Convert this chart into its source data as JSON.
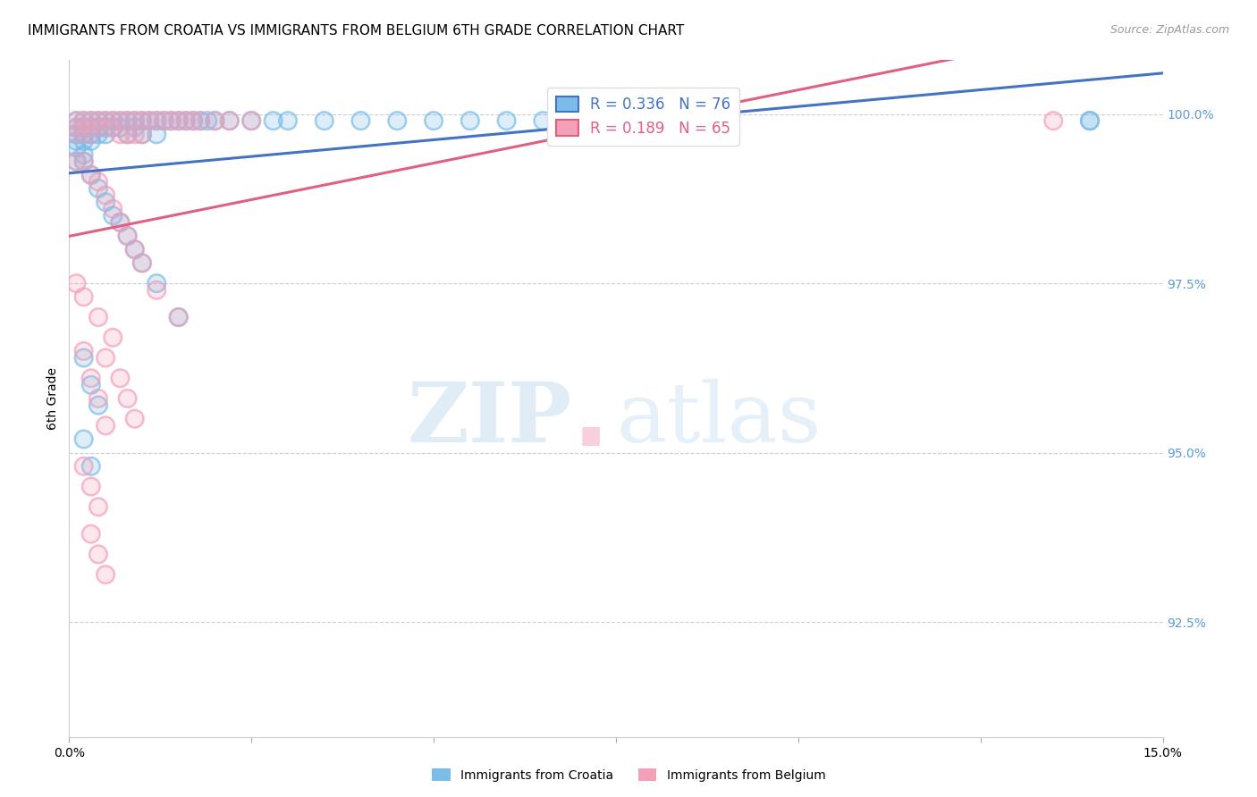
{
  "title": "IMMIGRANTS FROM CROATIA VS IMMIGRANTS FROM BELGIUM 6TH GRADE CORRELATION CHART",
  "source": "Source: ZipAtlas.com",
  "ylabel": "6th Grade",
  "ytick_labels": [
    "100.0%",
    "97.5%",
    "95.0%",
    "92.5%"
  ],
  "ytick_values": [
    1.0,
    0.975,
    0.95,
    0.925
  ],
  "xlim": [
    0.0,
    0.15
  ],
  "ylim": [
    0.908,
    1.008
  ],
  "croatia_color": "#7cbce9",
  "belgium_color": "#f4a0b8",
  "croatia_line_color": "#4472c4",
  "belgium_line_color": "#e06080",
  "legend_croatia_R": "0.336",
  "legend_croatia_N": "76",
  "legend_belgium_R": "0.189",
  "legend_belgium_N": "65",
  "croatia_x": [
    0.001,
    0.001,
    0.001,
    0.001,
    0.001,
    0.002,
    0.002,
    0.002,
    0.002,
    0.002,
    0.003,
    0.003,
    0.003,
    0.003,
    0.004,
    0.004,
    0.004,
    0.005,
    0.005,
    0.005,
    0.006,
    0.006,
    0.007,
    0.007,
    0.008,
    0.008,
    0.009,
    0.009,
    0.01,
    0.01,
    0.011,
    0.012,
    0.012,
    0.013,
    0.014,
    0.015,
    0.016,
    0.017,
    0.018,
    0.019,
    0.02,
    0.022,
    0.025,
    0.028,
    0.03,
    0.035,
    0.04,
    0.045,
    0.05,
    0.055,
    0.06,
    0.065,
    0.07,
    0.075,
    0.08,
    0.085,
    0.09,
    0.001,
    0.002,
    0.003,
    0.004,
    0.005,
    0.006,
    0.007,
    0.008,
    0.009,
    0.01,
    0.012,
    0.015,
    0.002,
    0.003,
    0.004,
    0.002,
    0.003,
    0.14,
    0.14
  ],
  "croatia_y": [
    0.999,
    0.998,
    0.997,
    0.996,
    0.995,
    0.999,
    0.998,
    0.997,
    0.996,
    0.994,
    0.999,
    0.998,
    0.997,
    0.996,
    0.999,
    0.998,
    0.997,
    0.999,
    0.998,
    0.997,
    0.999,
    0.998,
    0.999,
    0.998,
    0.999,
    0.997,
    0.999,
    0.998,
    0.999,
    0.997,
    0.999,
    0.999,
    0.997,
    0.999,
    0.999,
    0.999,
    0.999,
    0.999,
    0.999,
    0.999,
    0.999,
    0.999,
    0.999,
    0.999,
    0.999,
    0.999,
    0.999,
    0.999,
    0.999,
    0.999,
    0.999,
    0.999,
    0.999,
    0.999,
    0.999,
    0.999,
    0.999,
    0.993,
    0.993,
    0.991,
    0.989,
    0.987,
    0.985,
    0.984,
    0.982,
    0.98,
    0.978,
    0.975,
    0.97,
    0.964,
    0.96,
    0.957,
    0.952,
    0.948,
    0.999,
    0.999
  ],
  "belgium_x": [
    0.001,
    0.001,
    0.001,
    0.002,
    0.002,
    0.002,
    0.003,
    0.003,
    0.003,
    0.004,
    0.004,
    0.005,
    0.005,
    0.006,
    0.006,
    0.007,
    0.007,
    0.008,
    0.008,
    0.009,
    0.009,
    0.01,
    0.01,
    0.011,
    0.012,
    0.013,
    0.014,
    0.015,
    0.016,
    0.017,
    0.018,
    0.02,
    0.022,
    0.025,
    0.001,
    0.002,
    0.003,
    0.004,
    0.005,
    0.006,
    0.007,
    0.008,
    0.009,
    0.01,
    0.012,
    0.015,
    0.002,
    0.003,
    0.004,
    0.005,
    0.002,
    0.003,
    0.004,
    0.003,
    0.004,
    0.005,
    0.135,
    0.001,
    0.002,
    0.004,
    0.006,
    0.005,
    0.007,
    0.008,
    0.009
  ],
  "belgium_y": [
    0.999,
    0.998,
    0.997,
    0.999,
    0.998,
    0.997,
    0.999,
    0.998,
    0.997,
    0.999,
    0.998,
    0.999,
    0.998,
    0.999,
    0.998,
    0.999,
    0.997,
    0.999,
    0.997,
    0.999,
    0.997,
    0.999,
    0.997,
    0.999,
    0.999,
    0.999,
    0.999,
    0.999,
    0.999,
    0.999,
    0.999,
    0.999,
    0.999,
    0.999,
    0.993,
    0.993,
    0.991,
    0.99,
    0.988,
    0.986,
    0.984,
    0.982,
    0.98,
    0.978,
    0.974,
    0.97,
    0.965,
    0.961,
    0.958,
    0.954,
    0.948,
    0.945,
    0.942,
    0.938,
    0.935,
    0.932,
    0.999,
    0.975,
    0.973,
    0.97,
    0.967,
    0.964,
    0.961,
    0.958,
    0.955
  ],
  "watermark_zip": "ZIP",
  "watermark_atlas": "atlas",
  "watermark_dot_color": "#f4a0b8",
  "grid_color": "#cccccc",
  "background_color": "#ffffff",
  "title_fontsize": 11,
  "tick_fontsize": 10,
  "legend_fontsize": 12,
  "source_fontsize": 9,
  "ylabel_fontsize": 10
}
